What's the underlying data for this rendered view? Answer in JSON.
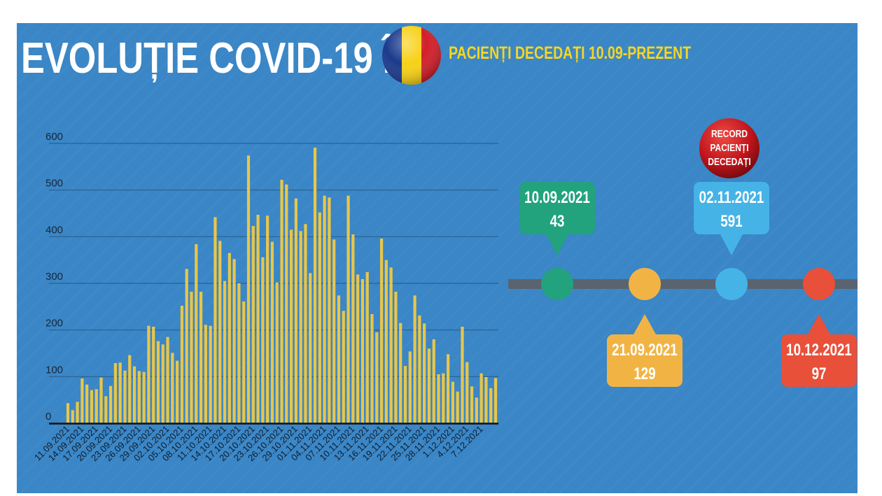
{
  "header": {
    "title": "EVOLUȚIE COVID-19 ÎN",
    "subtitle": "PACIENȚI DECEDAȚI 10.09-PREZENT",
    "flag_colors": [
      "#1b3a8c",
      "#f7d117",
      "#d21f2b"
    ]
  },
  "chart_data": {
    "type": "bar",
    "title": "",
    "xlabel": "",
    "ylabel": "",
    "ylim": [
      0,
      600
    ],
    "yticks": [
      "0",
      "100",
      "200",
      "300",
      "400",
      "500",
      "600"
    ],
    "grid": true,
    "bar_color": "#e8c64a",
    "xtick_labels": [
      "11.09.2021",
      "14.09.2021",
      "17.09.2021",
      "20.09.2021",
      "23.09.2021",
      "26.09.2021",
      "29.09.2021",
      "02.10.2021",
      "05.10.2021",
      "08.10.2021",
      "11.10.2021",
      "14.10.2021",
      "17.10.2021",
      "20.10.2021",
      "23.10.2021",
      "26.10.2021",
      "29.10.2021",
      "01.11.2021",
      "04.11.2021",
      "07.11.2021",
      "10.11.2021",
      "13.11.2021",
      "16.11.2021",
      "19.11.2021",
      "22.11.2021",
      "25.11.2021",
      "28.11.2021",
      "1.12.2021",
      "4.12.2021",
      "7.12.2021"
    ],
    "values": [
      43,
      28,
      46,
      96,
      83,
      71,
      73,
      98,
      58,
      80,
      129,
      130,
      113,
      146,
      122,
      112,
      110,
      209,
      207,
      176,
      169,
      185,
      151,
      134,
      252,
      331,
      282,
      384,
      282,
      211,
      209,
      442,
      391,
      305,
      365,
      352,
      300,
      261,
      574,
      423,
      447,
      356,
      445,
      389,
      302,
      522,
      512,
      415,
      482,
      412,
      427,
      322,
      591,
      452,
      488,
      484,
      394,
      274,
      241,
      488,
      405,
      319,
      309,
      324,
      234,
      195,
      396,
      350,
      334,
      282,
      215,
      123,
      154,
      274,
      231,
      214,
      160,
      180,
      105,
      107,
      148,
      89,
      68,
      207,
      131,
      79,
      55,
      107,
      99,
      75,
      97
    ]
  },
  "timeline": {
    "line_color": "#5a6470",
    "badge": {
      "lines": [
        "RECORD",
        "PACIENȚI",
        "DECEDAȚI"
      ],
      "color": "#c0151b"
    },
    "events": [
      {
        "date": "10.09.2021",
        "value": "43",
        "color": "#22a37e",
        "position": "above"
      },
      {
        "date": "21.09.2021",
        "value": "129",
        "color": "#f1b444",
        "position": "below"
      },
      {
        "date": "02.11.2021",
        "value": "591",
        "color": "#45b3e6",
        "position": "above"
      },
      {
        "date": "10.12.2021",
        "value": "97",
        "color": "#e8503a",
        "position": "below"
      }
    ]
  }
}
